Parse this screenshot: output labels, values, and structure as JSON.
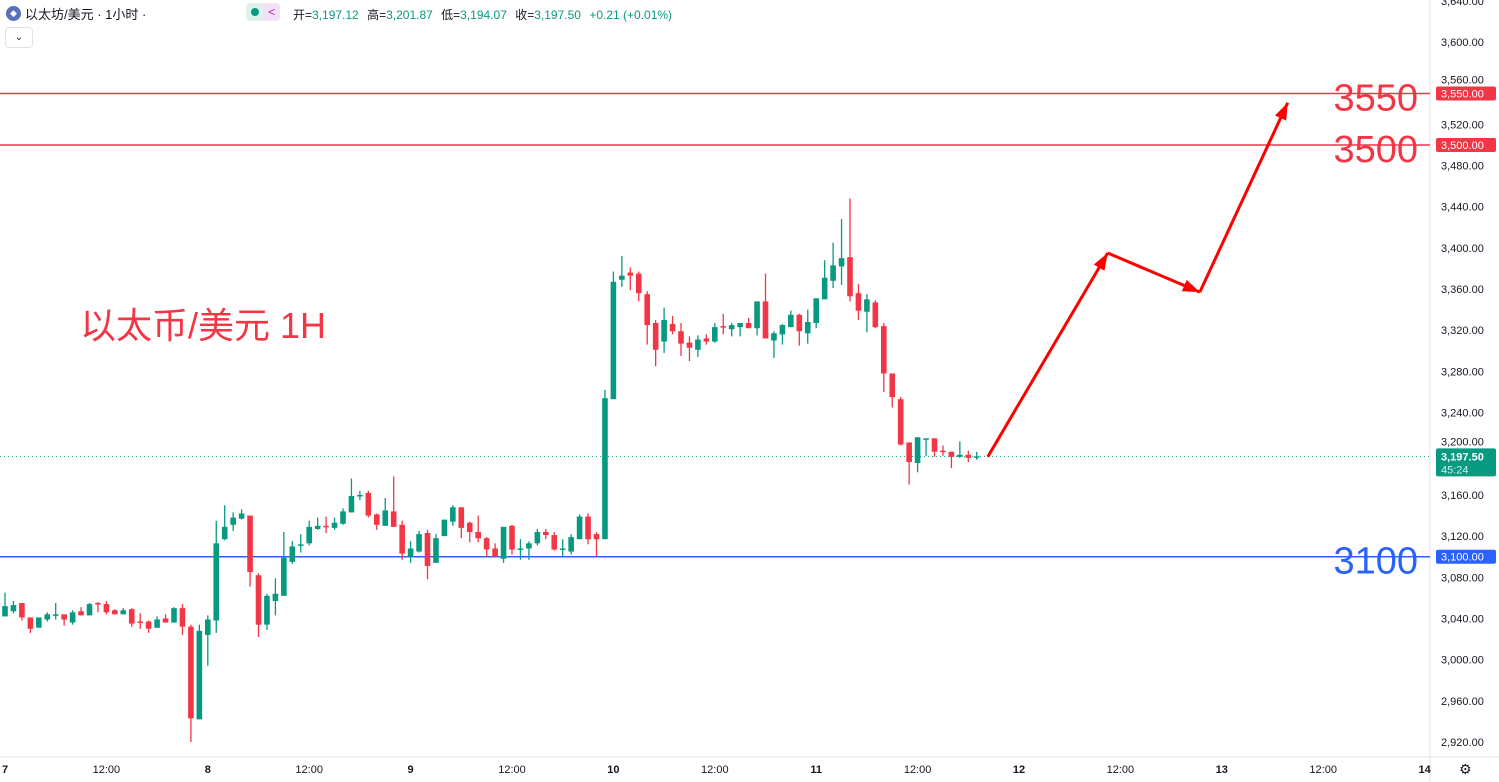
{
  "header": {
    "symbol_title": "以太坊/美元 · 1小时 ·",
    "logo_icon": "ethereum-icon",
    "ohlc": [
      {
        "label": "开=",
        "value": "3,197.12"
      },
      {
        "label": "高=",
        "value": "3,201.87"
      },
      {
        "label": "低=",
        "value": "3,194.07"
      },
      {
        "label": "收=",
        "value": "3,197.50"
      }
    ],
    "change": "+0.21 (+0.01%)",
    "collapse_icon": "chevron-down-icon"
  },
  "chart_data": {
    "type": "candlestick",
    "annotation_title": "以太币/美元 1H",
    "colors": {
      "up": "#089981",
      "down": "#F23645",
      "resistance": "#F23645",
      "support": "#2962FF"
    },
    "ylim": [
      2900,
      3650
    ],
    "y_ticks": [
      "3,640.00",
      "3,600.00",
      "3,560.00",
      "3,520.00",
      "3,480.00",
      "3,440.00",
      "3,400.00",
      "3,360.00",
      "3,320.00",
      "3,280.00",
      "3,240.00",
      "3,200.00",
      "3,160.00",
      "3,120.00",
      "3,080.00",
      "3,040.00",
      "3,000.00",
      "2,960.00",
      "2,920.00"
    ],
    "x_ticks": [
      "7",
      "12:00",
      "8",
      "12:00",
      "9",
      "12:00",
      "10",
      "12:00",
      "11",
      "12:00",
      "12",
      "12:00",
      "13",
      "12:00",
      "14"
    ],
    "candles_ohlc": [
      [
        3042,
        3065,
        3042,
        3052
      ],
      [
        3047,
        3057,
        3045,
        3053
      ],
      [
        3055,
        3055,
        3038,
        3041
      ],
      [
        3041,
        3041,
        3026,
        3030
      ],
      [
        3031,
        3041,
        3031,
        3041
      ],
      [
        3039,
        3046,
        3037,
        3044
      ],
      [
        3043,
        3055,
        3039,
        3044
      ],
      [
        3044,
        3044,
        3033,
        3039
      ],
      [
        3036,
        3048,
        3034,
        3046
      ],
      [
        3047,
        3051,
        3043,
        3043
      ],
      [
        3043,
        3055,
        3043,
        3054
      ],
      [
        3055,
        3056,
        3046,
        3054
      ],
      [
        3054,
        3057,
        3044,
        3046
      ],
      [
        3048,
        3049,
        3044,
        3044
      ],
      [
        3044,
        3050,
        3044,
        3048
      ],
      [
        3049,
        3050,
        3032,
        3035
      ],
      [
        3037,
        3045,
        3030,
        3036
      ],
      [
        3037,
        3038,
        3026,
        3030
      ],
      [
        3031,
        3042,
        3031,
        3039
      ],
      [
        3040,
        3044,
        3036,
        3036
      ],
      [
        3036,
        3051,
        3036,
        3050
      ],
      [
        3050,
        3054,
        3024,
        3032
      ],
      [
        3032,
        3034,
        2920,
        2943
      ],
      [
        2942,
        3034,
        2942,
        3028
      ],
      [
        3024,
        3043,
        2994,
        3039
      ],
      [
        3038,
        3135,
        3026,
        3113
      ],
      [
        3117,
        3150,
        3116,
        3129
      ],
      [
        3131,
        3143,
        3125,
        3138
      ],
      [
        3137,
        3146,
        3136,
        3142
      ],
      [
        3140,
        3140,
        3071,
        3085
      ],
      [
        3082,
        3084,
        3022,
        3034
      ],
      [
        3034,
        3064,
        3029,
        3062
      ],
      [
        3057,
        3079,
        3043,
        3064
      ],
      [
        3062,
        3124,
        3062,
        3099
      ],
      [
        3095,
        3115,
        3093,
        3110
      ],
      [
        3111,
        3122,
        3104,
        3112
      ],
      [
        3113,
        3135,
        3111,
        3129
      ],
      [
        3127,
        3138,
        3126,
        3130
      ],
      [
        3130,
        3139,
        3123,
        3129
      ],
      [
        3128,
        3138,
        3126,
        3133
      ],
      [
        3132,
        3147,
        3131,
        3144
      ],
      [
        3143,
        3176,
        3143,
        3159
      ],
      [
        3159,
        3164,
        3155,
        3160
      ],
      [
        3162,
        3164,
        3138,
        3140
      ],
      [
        3141,
        3142,
        3126,
        3131
      ],
      [
        3130,
        3157,
        3130,
        3145
      ],
      [
        3144,
        3178,
        3129,
        3129
      ],
      [
        3131,
        3135,
        3097,
        3103
      ],
      [
        3100,
        3115,
        3094,
        3108
      ],
      [
        3105,
        3125,
        3104,
        3122
      ],
      [
        3123,
        3126,
        3078,
        3091
      ],
      [
        3094,
        3122,
        3094,
        3118
      ],
      [
        3120,
        3136,
        3120,
        3136
      ],
      [
        3134,
        3150,
        3130,
        3148
      ],
      [
        3148,
        3148,
        3118,
        3128
      ],
      [
        3133,
        3134,
        3114,
        3124
      ],
      [
        3124,
        3140,
        3114,
        3118
      ],
      [
        3118,
        3119,
        3100,
        3107
      ],
      [
        3108,
        3113,
        3100,
        3100
      ],
      [
        3098,
        3129,
        3094,
        3129
      ],
      [
        3130,
        3131,
        3102,
        3107
      ],
      [
        3107,
        3117,
        3097,
        3108
      ],
      [
        3108,
        3115,
        3097,
        3113
      ],
      [
        3113,
        3127,
        3111,
        3124
      ],
      [
        3124,
        3127,
        3117,
        3121
      ],
      [
        3121,
        3124,
        3106,
        3107
      ],
      [
        3107,
        3117,
        3100,
        3108
      ],
      [
        3105,
        3122,
        3102,
        3119
      ],
      [
        3117,
        3141,
        3117,
        3139
      ],
      [
        3139,
        3142,
        3112,
        3117
      ],
      [
        3122,
        3124,
        3100,
        3117
      ],
      [
        3117,
        3262,
        3117,
        3254
      ],
      [
        3253,
        3377,
        3253,
        3367
      ],
      [
        3369,
        3392,
        3362,
        3373
      ],
      [
        3376,
        3381,
        3359,
        3373
      ],
      [
        3375,
        3377,
        3348,
        3356
      ],
      [
        3355,
        3358,
        3306,
        3325
      ],
      [
        3327,
        3330,
        3285,
        3301
      ],
      [
        3309,
        3342,
        3298,
        3330
      ],
      [
        3326,
        3334,
        3316,
        3319
      ],
      [
        3319,
        3327,
        3295,
        3307
      ],
      [
        3308,
        3314,
        3290,
        3303
      ],
      [
        3301,
        3315,
        3294,
        3311
      ],
      [
        3312,
        3316,
        3306,
        3309
      ],
      [
        3309,
        3327,
        3308,
        3323
      ],
      [
        3324,
        3336,
        3316,
        3323
      ],
      [
        3321,
        3327,
        3314,
        3325
      ],
      [
        3323,
        3327,
        3314,
        3327
      ],
      [
        3327,
        3332,
        3322,
        3322
      ],
      [
        3322,
        3348,
        3315,
        3348
      ],
      [
        3348,
        3375,
        3312,
        3312
      ],
      [
        3310,
        3319,
        3293,
        3317
      ],
      [
        3316,
        3326,
        3306,
        3325
      ],
      [
        3323,
        3339,
        3323,
        3335
      ],
      [
        3335,
        3336,
        3305,
        3319
      ],
      [
        3317,
        3340,
        3307,
        3328
      ],
      [
        3327,
        3351,
        3322,
        3351
      ],
      [
        3350,
        3388,
        3351,
        3371
      ],
      [
        3368,
        3405,
        3361,
        3383
      ],
      [
        3382,
        3428,
        3364,
        3390
      ],
      [
        3391,
        3448,
        3348,
        3353
      ],
      [
        3356,
        3365,
        3330,
        3339
      ],
      [
        3338,
        3355,
        3318,
        3350
      ],
      [
        3347,
        3349,
        3322,
        3323
      ],
      [
        3324,
        3327,
        3260,
        3278
      ],
      [
        3278,
        3278,
        3245,
        3255
      ],
      [
        3253,
        3255,
        3208,
        3209
      ],
      [
        3211,
        3211,
        3170,
        3192
      ],
      [
        3191,
        3216,
        3182,
        3216
      ],
      [
        3214,
        3215,
        3198,
        3215
      ],
      [
        3215,
        3215,
        3197,
        3202
      ],
      [
        3203,
        3208,
        3198,
        3202
      ],
      [
        3202,
        3202,
        3186,
        3197
      ],
      [
        3197,
        3212,
        3196,
        3199
      ],
      [
        3199,
        3203,
        3192,
        3196
      ],
      [
        3197.12,
        3201.87,
        3194.07,
        3197.5
      ]
    ],
    "levels": [
      {
        "price": 3550,
        "label": "3550",
        "axis_label": "3,550.00",
        "kind": "resistance"
      },
      {
        "price": 3500,
        "label": "3500",
        "axis_label": "3,500.00",
        "kind": "resistance"
      },
      {
        "price": 3100,
        "label": "3100",
        "axis_label": "3,100.00",
        "kind": "support"
      }
    ],
    "last_price": {
      "value": 3197.5,
      "label": "3,197.50",
      "countdown": "45:24"
    },
    "forecast_path": [
      {
        "time": "11 20:18",
        "price": 3197
      },
      {
        "time": "12 10:30",
        "price": 3395
      },
      {
        "time": "12 21:24",
        "price": 3357
      },
      {
        "time": "13 07:48",
        "price": 3541
      }
    ]
  },
  "footer": {
    "settings_icon": "gear-icon"
  }
}
